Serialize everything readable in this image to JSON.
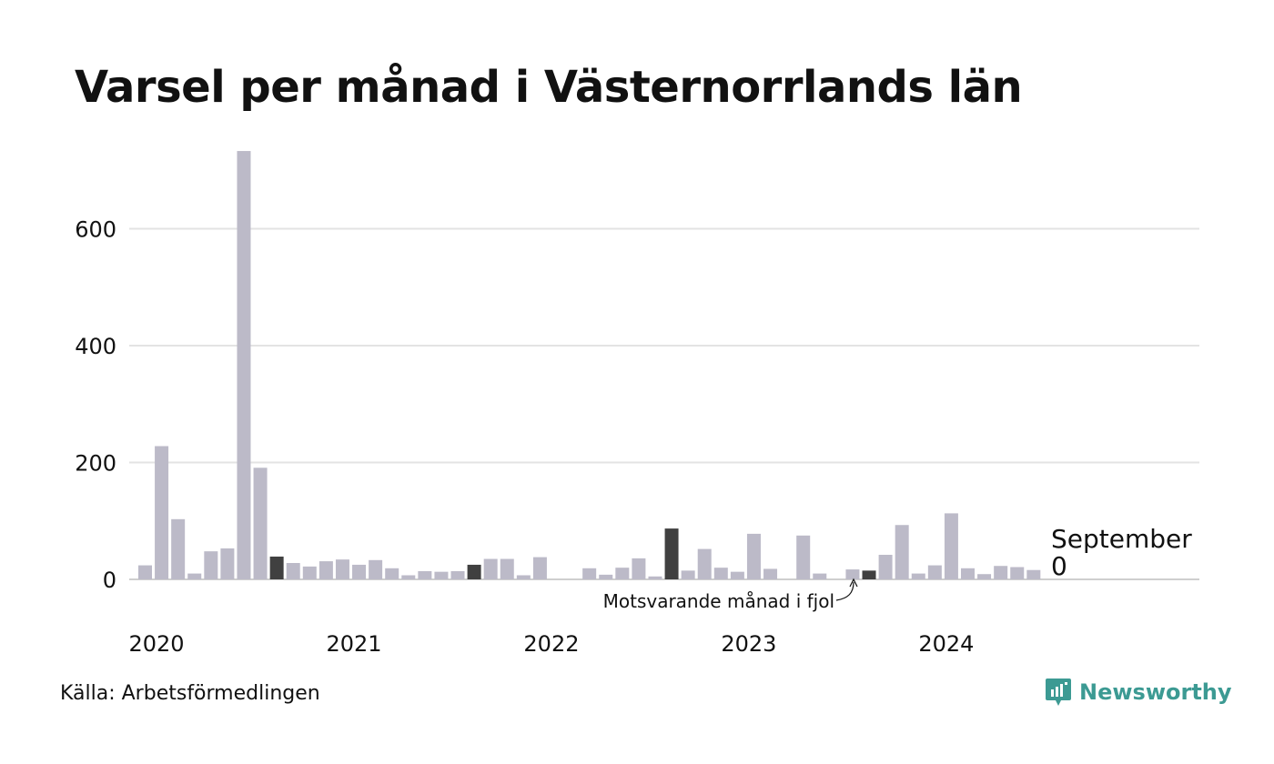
{
  "title": "Varsel per månad i Västernorrlands län",
  "source": "Källa: Arbetsförmedlingen",
  "brand": {
    "name": "Newsworthy",
    "icon": "newsworthy-logo-icon"
  },
  "colors": {
    "bar": "#bcbac8",
    "highlight": "#404040",
    "grid": "#e3e3e3",
    "axis": "#cfcfcf",
    "text": "#111111",
    "brand": "#3c9a93"
  },
  "annotation": {
    "current_month": "September",
    "current_value": "0",
    "previous_year_label": "Motsvarande månad i fjol"
  },
  "chart_data": {
    "type": "bar",
    "title": "Varsel per månad i Västernorrlands län",
    "xlabel": "",
    "ylabel": "",
    "ylim": [
      0,
      740
    ],
    "yticks": [
      0,
      200,
      400,
      600
    ],
    "grid": true,
    "x_tick_labels": [
      "2020",
      "2021",
      "2022",
      "2023",
      "2024"
    ],
    "categories": [
      "2020-01",
      "2020-02",
      "2020-03",
      "2020-04",
      "2020-05",
      "2020-06",
      "2020-07",
      "2020-08",
      "2020-09",
      "2020-10",
      "2020-11",
      "2020-12",
      "2021-01",
      "2021-02",
      "2021-03",
      "2021-04",
      "2021-05",
      "2021-06",
      "2021-07",
      "2021-08",
      "2021-09",
      "2021-10",
      "2021-11",
      "2021-12",
      "2022-01",
      "2022-02",
      "2022-03",
      "2022-04",
      "2022-05",
      "2022-06",
      "2022-07",
      "2022-08",
      "2022-09",
      "2022-10",
      "2022-11",
      "2022-12",
      "2023-01",
      "2023-02",
      "2023-03",
      "2023-04",
      "2023-05",
      "2023-06",
      "2023-07",
      "2023-08",
      "2023-09",
      "2023-10",
      "2023-11",
      "2023-12",
      "2024-01",
      "2024-02",
      "2024-03",
      "2024-04",
      "2024-05",
      "2024-06",
      "2024-07",
      "2024-08",
      "2024-09"
    ],
    "values": [
      24,
      228,
      103,
      10,
      48,
      53,
      733,
      191,
      39,
      28,
      22,
      31,
      34,
      25,
      33,
      19,
      7,
      14,
      13,
      14,
      25,
      35,
      35,
      7,
      38,
      0,
      0,
      19,
      8,
      20,
      36,
      5,
      87,
      15,
      52,
      20,
      13,
      78,
      18,
      0,
      75,
      10,
      0,
      17,
      15,
      42,
      93,
      10,
      24,
      113,
      19,
      9,
      23,
      21,
      16,
      0,
      0
    ],
    "highlighted": [
      "2020-09",
      "2021-09",
      "2022-09",
      "2023-09",
      "2024-09"
    ]
  }
}
